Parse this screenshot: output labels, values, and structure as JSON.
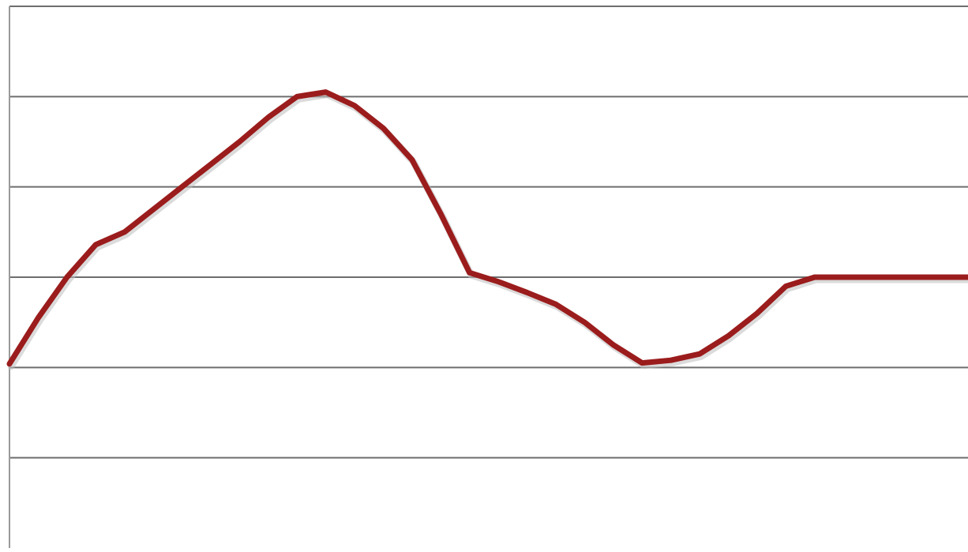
{
  "chart_data": {
    "type": "line",
    "title": "",
    "xlabel": "",
    "ylabel": "",
    "ylim": [
      0,
      6
    ],
    "gridlines": [
      1,
      2,
      3,
      4,
      5,
      6
    ],
    "grid": true,
    "legend": "none",
    "series_color": "#9b1c1c",
    "series": [
      {
        "x": [
          0,
          3,
          6,
          9,
          12,
          15,
          18,
          21,
          24,
          27,
          30,
          33,
          36,
          39,
          42,
          45,
          48,
          51,
          54,
          57,
          60,
          63,
          66,
          69,
          72,
          75,
          78,
          81,
          84,
          87,
          90,
          93,
          96,
          100
        ],
        "values": [
          2.04,
          2.55,
          3.0,
          3.36,
          3.5,
          3.75,
          4.0,
          4.25,
          4.5,
          4.77,
          5.0,
          5.05,
          4.9,
          4.65,
          4.3,
          3.7,
          3.05,
          2.95,
          2.83,
          2.7,
          2.5,
          2.25,
          2.05,
          2.08,
          2.15,
          2.35,
          2.6,
          2.9,
          3.0,
          3.0,
          3.0,
          3.0,
          3.0,
          3.0
        ]
      }
    ]
  }
}
